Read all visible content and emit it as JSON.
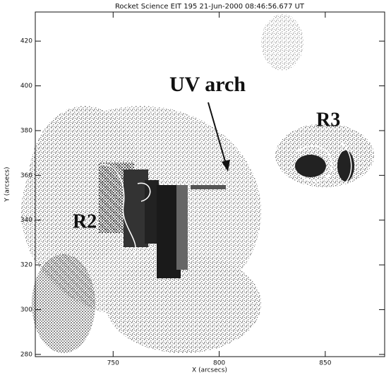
{
  "chart_data": {
    "type": "image",
    "title": "Rocket Science EIT 195 21-Jun-2000 08:46:56.677 UT",
    "x_label": "X (arcsecs)",
    "y_label": "Y (arcsecs)",
    "xlim": [
      713.3,
      878
    ],
    "ylim": [
      279,
      433
    ],
    "xticks": [
      750,
      800,
      850
    ],
    "yticks": [
      280,
      300,
      320,
      340,
      360,
      380,
      400,
      420
    ],
    "annotations": [
      "UV arch",
      "R2",
      "R3"
    ]
  }
}
